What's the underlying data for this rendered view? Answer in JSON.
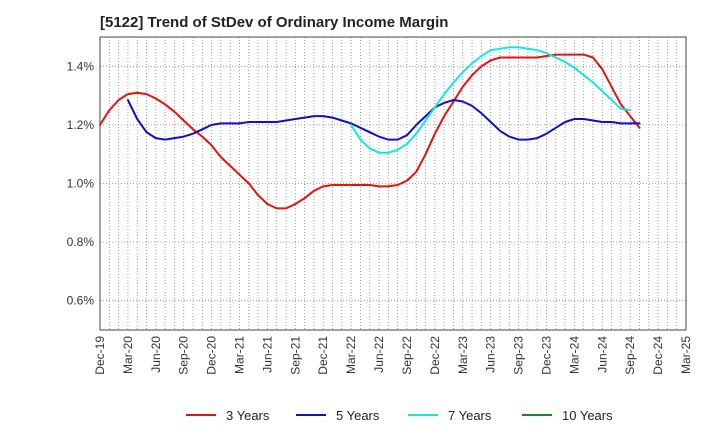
{
  "title": "[5122]  Trend of StDev of Ordinary Income Margin",
  "chart_data": {
    "type": "line",
    "title": "[5122]  Trend of StDev of Ordinary Income Margin",
    "xlabel": "",
    "ylabel": "",
    "x_tick_labels": [
      "Dec-19",
      "Mar-20",
      "Jun-20",
      "Sep-20",
      "Dec-20",
      "Mar-21",
      "Jun-21",
      "Sep-21",
      "Dec-21",
      "Mar-22",
      "Jun-22",
      "Sep-22",
      "Dec-22",
      "Mar-23",
      "Jun-23",
      "Sep-23",
      "Dec-23",
      "Mar-24",
      "Jun-24",
      "Sep-24",
      "Dec-24",
      "Mar-25"
    ],
    "y_tick_labels": [
      "0.6%",
      "0.8%",
      "1.0%",
      "1.2%",
      "1.4%"
    ],
    "y_ticks": [
      0.6,
      0.8,
      1.0,
      1.2,
      1.4
    ],
    "ylim": [
      0.5,
      1.5
    ],
    "grid": true,
    "legend_position": "bottom",
    "series": [
      {
        "name": "3 Years",
        "color": "#e8120c",
        "points": [
          [
            0,
            1.2
          ],
          [
            1,
            1.25
          ],
          [
            2,
            1.285
          ],
          [
            3,
            1.305
          ],
          [
            4,
            1.31
          ],
          [
            5,
            1.305
          ],
          [
            6,
            1.29
          ],
          [
            7,
            1.27
          ],
          [
            8,
            1.245
          ],
          [
            9,
            1.215
          ],
          [
            10,
            1.185
          ],
          [
            11,
            1.16
          ],
          [
            12,
            1.13
          ],
          [
            13,
            1.09
          ],
          [
            14,
            1.06
          ],
          [
            15,
            1.03
          ],
          [
            16,
            1.0
          ],
          [
            17,
            0.96
          ],
          [
            18,
            0.93
          ],
          [
            19,
            0.915
          ],
          [
            20,
            0.915
          ],
          [
            21,
            0.93
          ],
          [
            22,
            0.95
          ],
          [
            23,
            0.975
          ],
          [
            24,
            0.99
          ],
          [
            25,
            0.995
          ],
          [
            26,
            0.995
          ],
          [
            27,
            0.995
          ],
          [
            28,
            0.995
          ],
          [
            29,
            0.995
          ],
          [
            30,
            0.99
          ],
          [
            31,
            0.99
          ],
          [
            32,
            0.995
          ],
          [
            33,
            1.01
          ],
          [
            34,
            1.04
          ],
          [
            35,
            1.1
          ],
          [
            36,
            1.17
          ],
          [
            37,
            1.23
          ],
          [
            38,
            1.28
          ],
          [
            39,
            1.33
          ],
          [
            40,
            1.37
          ],
          [
            41,
            1.4
          ],
          [
            42,
            1.42
          ],
          [
            43,
            1.43
          ],
          [
            44,
            1.43
          ],
          [
            45,
            1.43
          ],
          [
            46,
            1.43
          ],
          [
            47,
            1.43
          ],
          [
            48,
            1.435
          ],
          [
            49,
            1.44
          ],
          [
            50,
            1.44
          ],
          [
            51,
            1.44
          ],
          [
            52,
            1.44
          ],
          [
            53,
            1.43
          ],
          [
            54,
            1.39
          ],
          [
            55,
            1.33
          ],
          [
            56,
            1.27
          ],
          [
            57,
            1.23
          ],
          [
            58,
            1.19
          ]
        ]
      },
      {
        "name": "5 Years",
        "color": "#1010cc",
        "points": [
          [
            3,
            1.285
          ],
          [
            4,
            1.22
          ],
          [
            5,
            1.175
          ],
          [
            6,
            1.155
          ],
          [
            7,
            1.15
          ],
          [
            8,
            1.155
          ],
          [
            9,
            1.16
          ],
          [
            10,
            1.17
          ],
          [
            11,
            1.185
          ],
          [
            12,
            1.2
          ],
          [
            13,
            1.205
          ],
          [
            14,
            1.205
          ],
          [
            15,
            1.205
          ],
          [
            16,
            1.21
          ],
          [
            17,
            1.21
          ],
          [
            18,
            1.21
          ],
          [
            19,
            1.21
          ],
          [
            20,
            1.215
          ],
          [
            21,
            1.22
          ],
          [
            22,
            1.225
          ],
          [
            23,
            1.23
          ],
          [
            24,
            1.23
          ],
          [
            25,
            1.225
          ],
          [
            26,
            1.215
          ],
          [
            27,
            1.205
          ],
          [
            28,
            1.19
          ],
          [
            29,
            1.175
          ],
          [
            30,
            1.16
          ],
          [
            31,
            1.15
          ],
          [
            32,
            1.15
          ],
          [
            33,
            1.165
          ],
          [
            34,
            1.2
          ],
          [
            35,
            1.23
          ],
          [
            36,
            1.26
          ],
          [
            37,
            1.275
          ],
          [
            38,
            1.285
          ],
          [
            39,
            1.28
          ],
          [
            40,
            1.265
          ],
          [
            41,
            1.24
          ],
          [
            42,
            1.21
          ],
          [
            43,
            1.18
          ],
          [
            44,
            1.16
          ],
          [
            45,
            1.15
          ],
          [
            46,
            1.15
          ],
          [
            47,
            1.155
          ],
          [
            48,
            1.17
          ],
          [
            49,
            1.19
          ],
          [
            50,
            1.21
          ],
          [
            51,
            1.22
          ],
          [
            52,
            1.22
          ],
          [
            53,
            1.215
          ],
          [
            54,
            1.21
          ],
          [
            55,
            1.21
          ],
          [
            56,
            1.205
          ],
          [
            57,
            1.205
          ],
          [
            58,
            1.205
          ]
        ]
      },
      {
        "name": "7 Years",
        "color": "#10e8e8",
        "points": [
          [
            27,
            1.2
          ],
          [
            28,
            1.15
          ],
          [
            29,
            1.12
          ],
          [
            30,
            1.105
          ],
          [
            31,
            1.105
          ],
          [
            32,
            1.115
          ],
          [
            33,
            1.135
          ],
          [
            34,
            1.17
          ],
          [
            35,
            1.215
          ],
          [
            36,
            1.26
          ],
          [
            37,
            1.305
          ],
          [
            38,
            1.345
          ],
          [
            39,
            1.38
          ],
          [
            40,
            1.41
          ],
          [
            41,
            1.435
          ],
          [
            42,
            1.455
          ],
          [
            43,
            1.46
          ],
          [
            44,
            1.465
          ],
          [
            45,
            1.465
          ],
          [
            46,
            1.46
          ],
          [
            47,
            1.455
          ],
          [
            48,
            1.445
          ],
          [
            49,
            1.43
          ],
          [
            50,
            1.415
          ],
          [
            51,
            1.395
          ],
          [
            52,
            1.37
          ],
          [
            53,
            1.345
          ],
          [
            54,
            1.315
          ],
          [
            55,
            1.285
          ],
          [
            56,
            1.255
          ],
          [
            57,
            1.25
          ]
        ]
      },
      {
        "name": "10 Years",
        "color": "#1a8a1a",
        "points": []
      }
    ]
  }
}
